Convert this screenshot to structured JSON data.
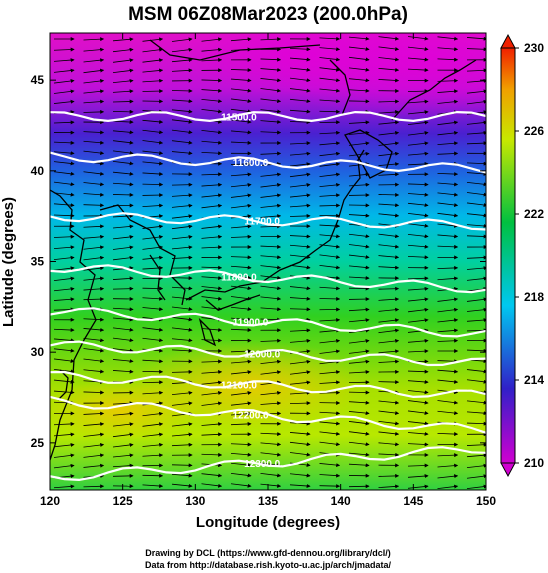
{
  "title": "MSM 06Z08Mar2023 (200.0hPa)",
  "x_axis": {
    "label": "Longitude (degrees)",
    "ticks": [
      "120",
      "125",
      "130",
      "135",
      "140",
      "145",
      "150"
    ],
    "range": [
      120,
      150
    ]
  },
  "y_axis": {
    "label": "Latitude  (degrees)",
    "ticks": [
      "25",
      "30",
      "35",
      "40",
      "45"
    ],
    "range": [
      22.4,
      47.6
    ]
  },
  "colorbar": {
    "ticks": [
      "210",
      "214",
      "218",
      "222",
      "226",
      "230"
    ],
    "range": [
      210,
      230
    ],
    "colors": [
      "#d000d0",
      "#3020c8",
      "#00c8f0",
      "#00c040",
      "#c8e800",
      "#f0a000",
      "#f02000"
    ]
  },
  "contours": [
    {
      "label": "11500.0",
      "lat_west": 43.0,
      "lat_east": 43.0
    },
    {
      "label": "11600.0",
      "lat_west": 40.8,
      "lat_east": 40.1
    },
    {
      "label": "11700.0",
      "lat_west": 37.5,
      "lat_east": 37.0
    },
    {
      "label": "11800.0",
      "lat_west": 34.7,
      "lat_east": 33.5
    },
    {
      "label": "11900.0",
      "lat_west": 32.3,
      "lat_east": 31.0
    },
    {
      "label": "12000.0",
      "lat_west": 30.4,
      "lat_east": 29.4
    },
    {
      "label": "12100.0",
      "lat_west": 28.7,
      "lat_east": 27.6
    },
    {
      "label": "12200.0",
      "lat_west": 27.3,
      "lat_east": 25.7
    },
    {
      "label": "12300.0",
      "lat_west": 23.1,
      "lat_east": 24.7
    }
  ],
  "credits": [
    "Drawing by DCL (https://www.gfd-dennou.org/library/dcl/)",
    "Data from http://database.rish.kyoto-u.ac.jp/arch/jmadata/"
  ]
}
